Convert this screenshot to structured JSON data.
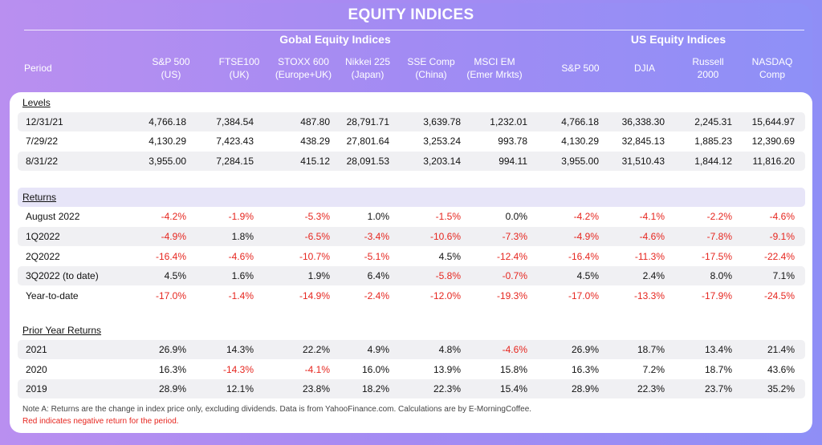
{
  "title": "EQUITY INDICES",
  "groups": {
    "global": "Gobal Equity Indices",
    "us": "US Equity Indices"
  },
  "period_label": "Period",
  "columns": [
    {
      "line1": "S&P 500",
      "line2": "(US)"
    },
    {
      "line1": "FTSE100",
      "line2": "(UK)"
    },
    {
      "line1": "STOXX 600",
      "line2": "(Europe+UK)"
    },
    {
      "line1": "Nikkei 225",
      "line2": "(Japan)"
    },
    {
      "line1": "SSE Comp",
      "line2": "(China)"
    },
    {
      "line1": "MSCI EM",
      "line2": "(Emer Mrkts)"
    },
    {
      "line1": "S&P 500",
      "line2": ""
    },
    {
      "line1": "DJIA",
      "line2": ""
    },
    {
      "line1": "Russell",
      "line2": "2000"
    },
    {
      "line1": "NASDAQ",
      "line2": "Comp"
    }
  ],
  "sections": [
    {
      "title": "Levels",
      "rows": [
        {
          "period": "12/31/21",
          "values": [
            "4,766.18",
            "7,384.54",
            "487.80",
            "28,791.71",
            "3,639.78",
            "1,232.01",
            "4,766.18",
            "36,338.30",
            "2,245.31",
            "15,644.97"
          ]
        },
        {
          "period": "7/29/22",
          "values": [
            "4,130.29",
            "7,423.43",
            "438.29",
            "27,801.64",
            "3,253.24",
            "993.78",
            "4,130.29",
            "32,845.13",
            "1,885.23",
            "12,390.69"
          ]
        },
        {
          "period": "8/31/22",
          "values": [
            "3,955.00",
            "7,284.15",
            "415.12",
            "28,091.53",
            "3,203.14",
            "994.11",
            "3,955.00",
            "31,510.43",
            "1,844.12",
            "11,816.20"
          ]
        }
      ]
    },
    {
      "title": "Returns",
      "rows": [
        {
          "period": "August 2022",
          "values": [
            "-4.2%",
            "-1.9%",
            "-5.3%",
            "1.0%",
            "-1.5%",
            "0.0%",
            "-4.2%",
            "-4.1%",
            "-2.2%",
            "-4.6%"
          ]
        },
        {
          "period": "1Q2022",
          "values": [
            "-4.9%",
            "1.8%",
            "-6.5%",
            "-3.4%",
            "-10.6%",
            "-7.3%",
            "-4.9%",
            "-4.6%",
            "-7.8%",
            "-9.1%"
          ]
        },
        {
          "period": "2Q2022",
          "values": [
            "-16.4%",
            "-4.6%",
            "-10.7%",
            "-5.1%",
            "4.5%",
            "-12.4%",
            "-16.4%",
            "-11.3%",
            "-17.5%",
            "-22.4%"
          ]
        },
        {
          "period": "3Q2022 (to date)",
          "values": [
            "4.5%",
            "1.6%",
            "1.9%",
            "6.4%",
            "-5.8%",
            "-0.7%",
            "4.5%",
            "2.4%",
            "8.0%",
            "7.1%"
          ]
        },
        {
          "period": "Year-to-date",
          "values": [
            "-17.0%",
            "-1.4%",
            "-14.9%",
            "-2.4%",
            "-12.0%",
            "-19.3%",
            "-17.0%",
            "-13.3%",
            "-17.9%",
            "-24.5%"
          ]
        }
      ]
    },
    {
      "title": "Prior Year Returns",
      "rows": [
        {
          "period": "2021",
          "values": [
            "26.9%",
            "14.3%",
            "22.2%",
            "4.9%",
            "4.8%",
            "-4.6%",
            "26.9%",
            "18.7%",
            "13.4%",
            "21.4%"
          ]
        },
        {
          "period": "2020",
          "values": [
            "16.3%",
            "-14.3%",
            "-4.1%",
            "16.0%",
            "13.9%",
            "15.8%",
            "16.3%",
            "7.2%",
            "18.7%",
            "43.6%"
          ]
        },
        {
          "period": "2019",
          "values": [
            "28.9%",
            "12.1%",
            "23.8%",
            "18.2%",
            "22.3%",
            "15.4%",
            "28.9%",
            "22.3%",
            "23.7%",
            "35.2%"
          ]
        }
      ]
    }
  ],
  "notes": {
    "note_a": "Note A:  Returns are the change in index price only, excluding dividends. Data is from YahooFinance.com. Calculations are by E-MorningCoffee.",
    "red_note": "Red indicates negative return for the period."
  },
  "colors": {
    "negative": "#e6261f",
    "header_bg": "#a78af2"
  }
}
